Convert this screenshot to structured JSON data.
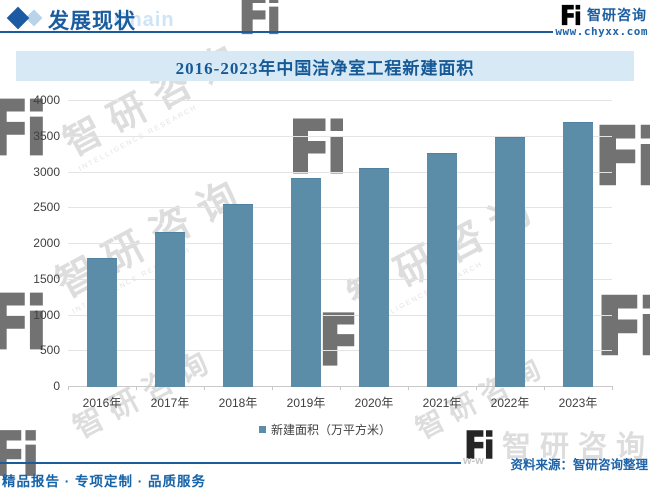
{
  "header": {
    "title": "发展现状",
    "chain_watermark": "Chain",
    "brand_name": "智研咨询",
    "brand_url": "www.chyxx.com"
  },
  "banner": {
    "title": "2016-2023年中国洁净室工程新建面积"
  },
  "chart_data": {
    "type": "bar",
    "title": "2016-2023年中国洁净室工程新建面积",
    "categories": [
      "2016年",
      "2017年",
      "2018年",
      "2019年",
      "2020年",
      "2021年",
      "2022年",
      "2023年"
    ],
    "values": [
      1790,
      2160,
      2550,
      2910,
      3050,
      3260,
      3480,
      3690
    ],
    "series_name": "新建面积（万平方米）",
    "xlabel": "",
    "ylabel": "",
    "ylim": [
      0,
      4000
    ],
    "ytick_step": 500,
    "grid": true,
    "legend_position": "bottom",
    "bar_color": "#5b8da8"
  },
  "footer": {
    "source": "资料来源：智研咨询整理",
    "tagline": "精品报告 · 专项定制 · 品质服务"
  },
  "watermark": {
    "logo_text": "智研咨询",
    "sub_text": "INTELLIGENCE RESEARCH",
    "fragment": "w-w"
  },
  "colors": {
    "accent_blue": "#1b5c9f",
    "banner_bg": "#d7e9f5",
    "bar": "#5b8da8"
  }
}
